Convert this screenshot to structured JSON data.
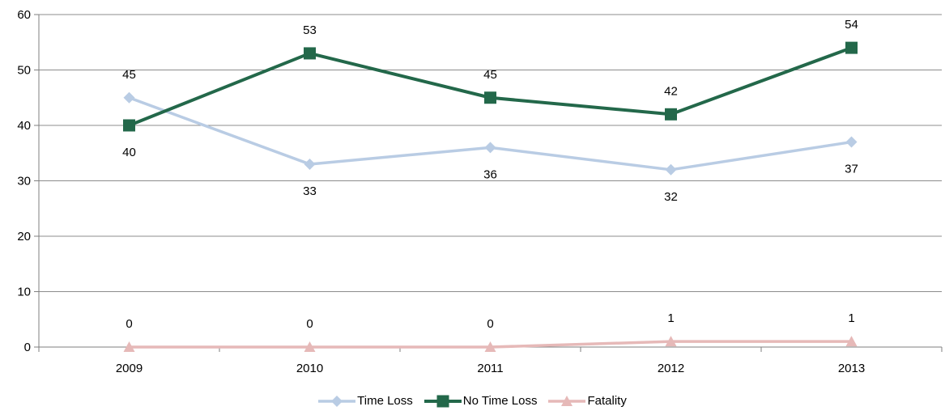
{
  "chart_data": {
    "type": "line",
    "categories": [
      "2009",
      "2010",
      "2011",
      "2012",
      "2013"
    ],
    "ylim": [
      0,
      60
    ],
    "yticks": [
      0,
      10,
      20,
      30,
      40,
      50,
      60
    ],
    "grid": true,
    "legend_position": "bottom",
    "series": [
      {
        "name": "Time Loss",
        "values": [
          45,
          33,
          36,
          32,
          37
        ],
        "color": "#b9cce4",
        "marker": "diamond",
        "label_positions": [
          "above",
          "below",
          "below",
          "below",
          "below"
        ]
      },
      {
        "name": "No Time Loss",
        "values": [
          40,
          53,
          45,
          42,
          54
        ],
        "color": "#23684a",
        "marker": "square",
        "label_positions": [
          "below",
          "above",
          "above",
          "above",
          "above"
        ]
      },
      {
        "name": "Fatality",
        "values": [
          0,
          0,
          0,
          1,
          1
        ],
        "color": "#e6b9b8",
        "marker": "triangle",
        "label_positions": [
          "above",
          "above",
          "above",
          "above",
          "above"
        ]
      }
    ]
  }
}
